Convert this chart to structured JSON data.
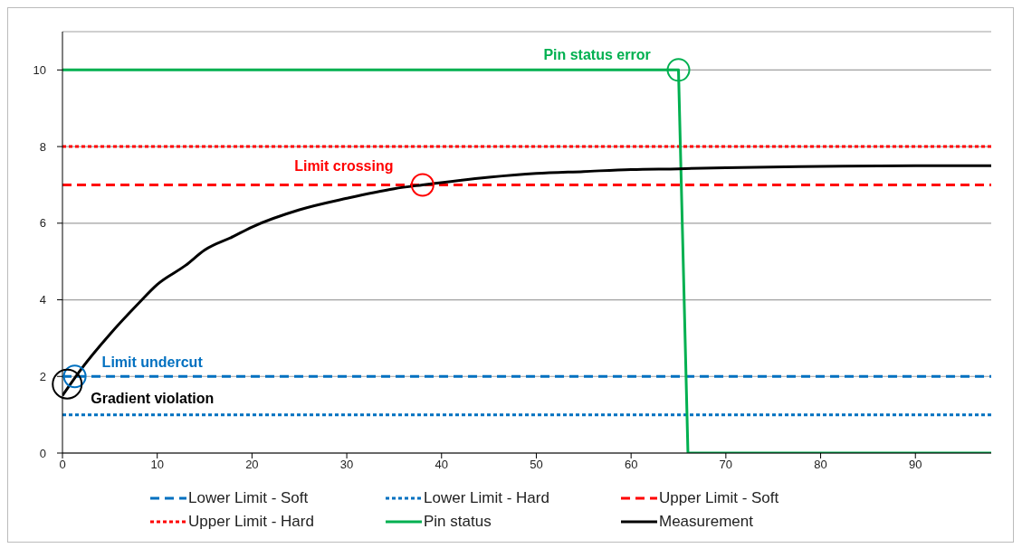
{
  "chart_data": {
    "type": "line",
    "xlim": [
      0,
      98
    ],
    "xticks": [
      0,
      10,
      20,
      30,
      40,
      50,
      60,
      70,
      80,
      90
    ],
    "ylim": [
      0,
      11
    ],
    "yticks": [
      0,
      2,
      4,
      6,
      8,
      10
    ],
    "grid": "y",
    "legend": "bottom",
    "marker": "none",
    "series": [
      {
        "name": "Lower Limit - Soft",
        "color": "#0070c0",
        "line_style": "dashed",
        "x": [
          0,
          98
        ],
        "values": [
          2,
          2
        ]
      },
      {
        "name": "Lower Limit - Hard",
        "color": "#0070c0",
        "line_style": "dotted",
        "x": [
          0,
          98
        ],
        "values": [
          1,
          1
        ]
      },
      {
        "name": "Upper Limit - Soft",
        "color": "#ff0000",
        "line_style": "dashed",
        "x": [
          0,
          98
        ],
        "values": [
          7,
          7
        ]
      },
      {
        "name": "Upper Limit - Hard",
        "color": "#ff0000",
        "line_style": "dotted",
        "x": [
          0,
          98
        ],
        "values": [
          8,
          8
        ]
      },
      {
        "name": "Pin status",
        "color": "#00b050",
        "line_style": "solid",
        "x": [
          0,
          65,
          66,
          98
        ],
        "values": [
          10,
          10,
          0,
          0
        ]
      },
      {
        "name": "Measurement",
        "color": "#000000",
        "line_style": "solid",
        "x": [
          0,
          2,
          5,
          8,
          10,
          13,
          15,
          18,
          20,
          25,
          30,
          35,
          38,
          45,
          50,
          55,
          60,
          65,
          70,
          80,
          90,
          98
        ],
        "values": [
          1.5,
          2.2,
          3.1,
          3.9,
          4.4,
          4.9,
          5.3,
          5.65,
          5.9,
          6.35,
          6.65,
          6.9,
          7.0,
          7.2,
          7.3,
          7.35,
          7.4,
          7.42,
          7.45,
          7.48,
          7.5,
          7.5
        ]
      }
    ],
    "annotations": [
      {
        "text": "Pin status error",
        "x": 65,
        "y": 10
      },
      {
        "text": "Limit crossing",
        "x": 38,
        "y": 7
      },
      {
        "text": "Limit undercut",
        "x": 1.3,
        "y": 2
      },
      {
        "text": "Gradient violation",
        "x": 0.5,
        "y": 1.8
      }
    ]
  }
}
